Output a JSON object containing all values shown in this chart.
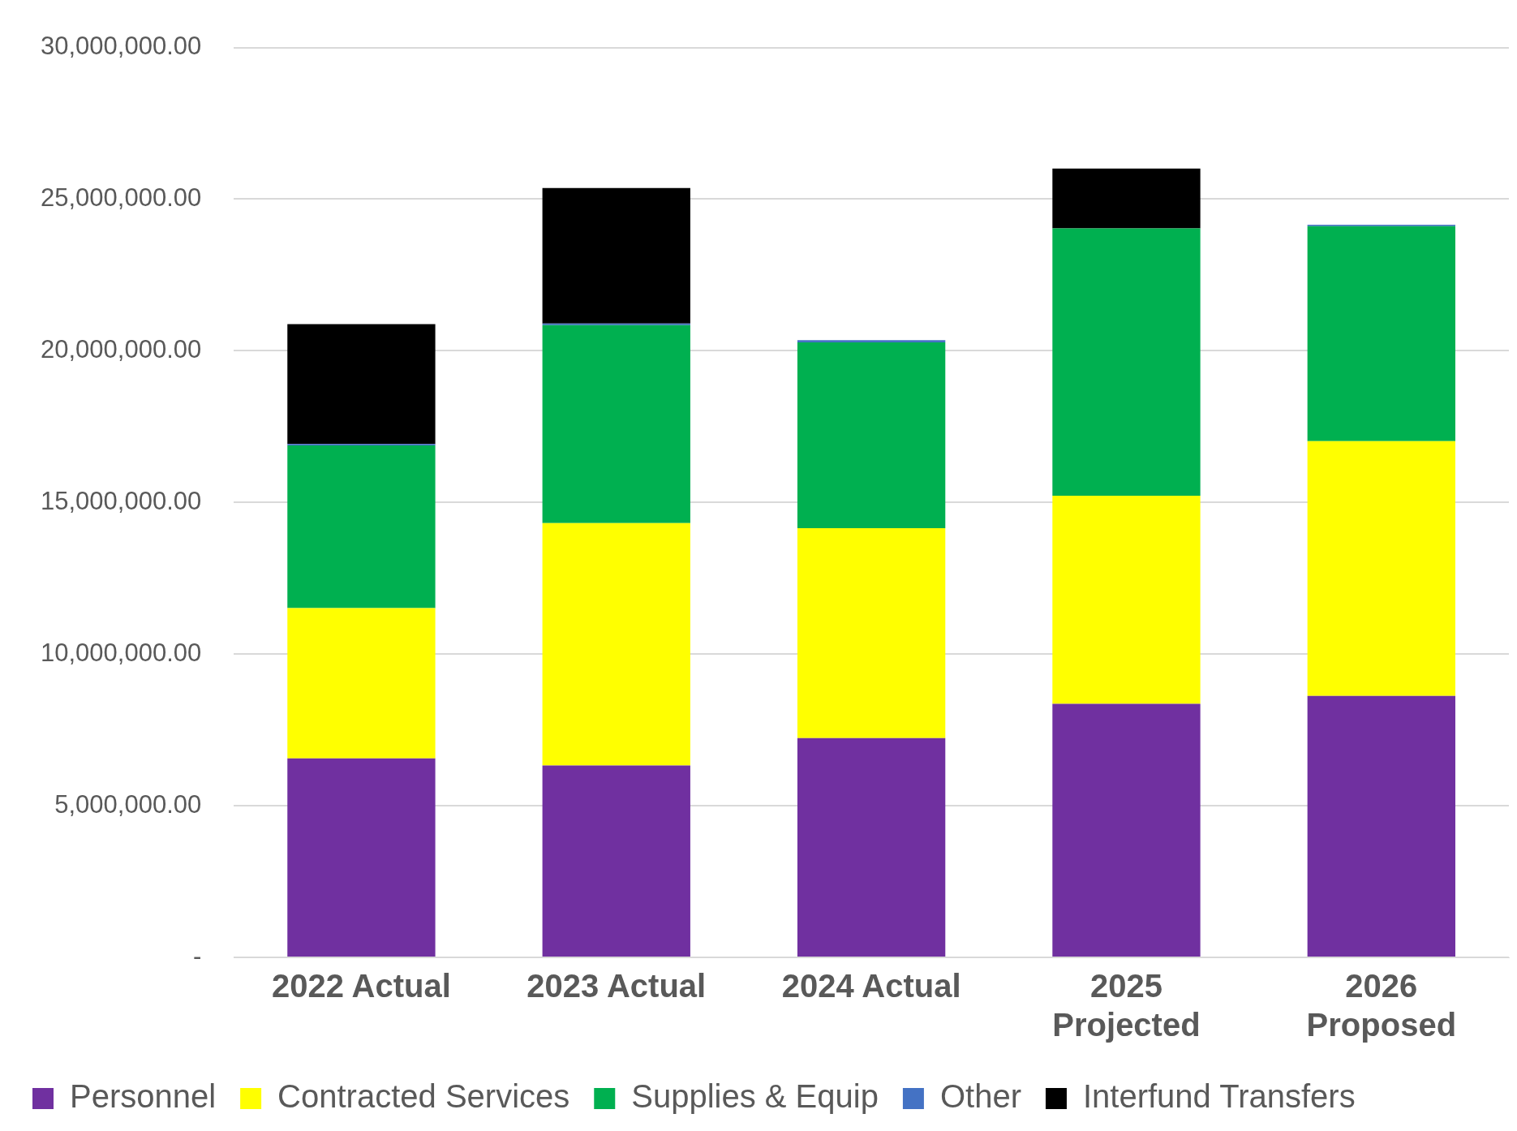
{
  "chart_data": {
    "type": "bar",
    "stacked": true,
    "categories": [
      "2022 Actual",
      "2023 Actual",
      "2024 Actual",
      "2025 Projected",
      "2026 Proposed"
    ],
    "series": [
      {
        "name": "Personnel",
        "color": "#7030a0",
        "values": [
          6560000,
          6330000,
          7230000,
          8360000,
          8620000
        ]
      },
      {
        "name": "Contracted Services",
        "color": "#ffff00",
        "values": [
          4960000,
          7990000,
          6920000,
          6860000,
          8400000
        ]
      },
      {
        "name": "Supplies & Equip",
        "color": "#00b050",
        "values": [
          5360000,
          6530000,
          6130000,
          8820000,
          7090000
        ]
      },
      {
        "name": "Other",
        "color": "#4472c4",
        "values": [
          50000,
          50000,
          70000,
          0,
          50000
        ]
      },
      {
        "name": "Interfund Transfers",
        "color": "#000000",
        "values": [
          3950000,
          4470000,
          0,
          1970000,
          0
        ]
      }
    ],
    "ylim": [
      0,
      30000000
    ],
    "yticks": [
      {
        "value": 0,
        "label": "-"
      },
      {
        "value": 5000000,
        "label": "5,000,000.00"
      },
      {
        "value": 10000000,
        "label": "10,000,000.00"
      },
      {
        "value": 15000000,
        "label": "15,000,000.00"
      },
      {
        "value": 20000000,
        "label": "20,000,000.00"
      },
      {
        "value": 25000000,
        "label": "25,000,000.00"
      },
      {
        "value": 30000000,
        "label": "30,000,000.00"
      }
    ],
    "grid": "y",
    "legend": "bottom"
  }
}
